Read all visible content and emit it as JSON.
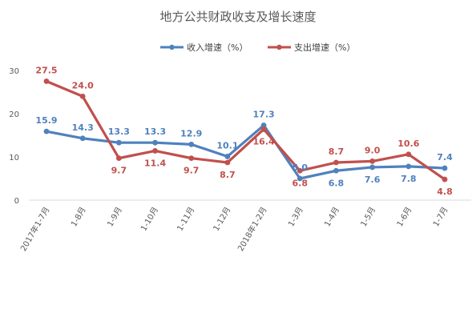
{
  "chart_data": {
    "type": "line",
    "title": "地方公共财政收支及增长速度",
    "categories": [
      "2017年1-7月",
      "1-8月",
      "1-9月",
      "1-10月",
      "1-11月",
      "1-12月",
      "2018年1-2月",
      "1-3月",
      "1-4月",
      "1-5月",
      "1-6月",
      "1-7月"
    ],
    "series": [
      {
        "name": "收入增速（%）",
        "color": "#4f81bd",
        "values": [
          15.9,
          14.3,
          13.3,
          13.3,
          12.9,
          10.1,
          17.3,
          5.0,
          6.8,
          7.6,
          7.8,
          7.4
        ]
      },
      {
        "name": "支出增速（%）",
        "color": "#c0504d",
        "values": [
          27.5,
          24.0,
          9.7,
          11.4,
          9.7,
          8.7,
          16.4,
          6.8,
          8.7,
          9.0,
          10.6,
          4.8
        ]
      }
    ],
    "y_ticks": [
      0,
      10,
      20,
      30
    ],
    "ylim": [
      0,
      30
    ],
    "legend": "top",
    "grid": false
  }
}
